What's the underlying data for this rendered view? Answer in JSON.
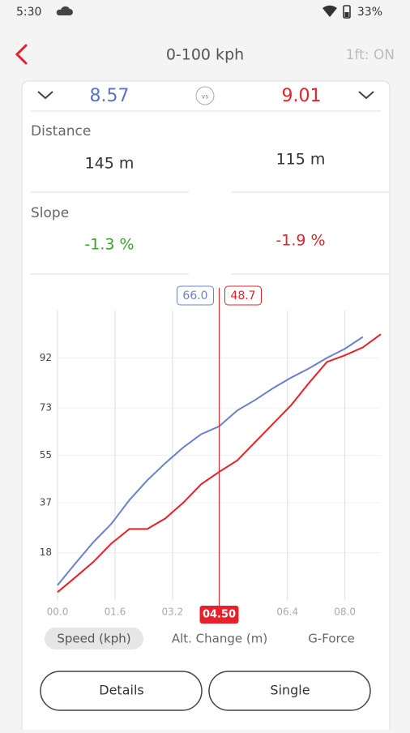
{
  "status_bar": {
    "time": "5:30",
    "battery": "33%"
  },
  "header": {
    "title": "0-100 kph",
    "setting": "1ft: ON"
  },
  "comparison": {
    "left": "8.57",
    "vs": "vs",
    "right": "9.01"
  },
  "stats": [
    {
      "label": "Distance",
      "left": "145 m",
      "right": "115 m"
    },
    {
      "label": "Slope",
      "left": "-1.3 %",
      "right": "-1.9 %"
    }
  ],
  "chart_data": {
    "type": "line",
    "x": [
      0,
      0.5,
      1,
      1.5,
      2,
      2.5,
      3,
      3.5,
      4,
      4.5,
      5,
      5.5,
      6,
      6.5,
      7,
      7.5,
      8,
      8.5,
      9
    ],
    "series": [
      {
        "color": "#6b7fcf",
        "values": [
          5.6,
          14,
          22,
          29,
          38,
          45.5,
          52,
          58,
          63,
          66,
          72,
          76,
          80.5,
          84.5,
          88,
          92,
          95.5,
          100,
          null
        ],
        "cursor": {
          "value": 66,
          "label": "66.0"
        }
      },
      {
        "color": "#e8202a",
        "values": [
          3,
          8.7,
          14.5,
          21.5,
          27,
          27,
          31,
          37,
          44,
          48.7,
          53,
          60,
          67,
          74,
          82.5,
          90.5,
          93,
          96,
          101
        ],
        "cursor": {
          "value": 48.7,
          "label": "48.7"
        }
      }
    ],
    "cursor": {
      "value": 4.5,
      "label": "04.50"
    },
    "xlim": [
      0,
      9
    ],
    "xticks": [
      {
        "value": 0,
        "label": "00.0"
      },
      {
        "value": 1.6,
        "label": "01.6"
      },
      {
        "value": 3.2,
        "label": "03.2"
      },
      {
        "value": 6.4,
        "label": "06.4"
      },
      {
        "value": 8,
        "label": "08.0"
      }
    ],
    "ylim": [
      0,
      110
    ],
    "yticks": [
      18,
      37,
      55,
      73,
      92
    ],
    "grid": true
  },
  "tabs": [
    "Speed (kph)",
    "Alt. Change (m)",
    "G-Force"
  ],
  "buttons": [
    "Details",
    "Single"
  ]
}
